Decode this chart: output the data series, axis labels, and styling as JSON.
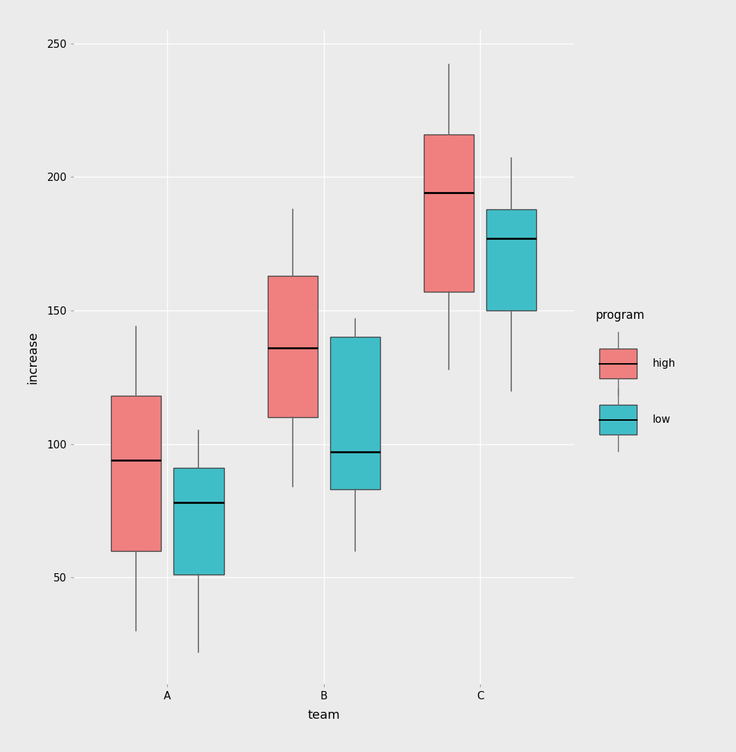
{
  "title": "",
  "xlabel": "team",
  "ylabel": "increase",
  "panel_bg_color": "#EBEBEB",
  "outer_bg_color": "#EBEBEB",
  "grid_color": "#FFFFFF",
  "groups": [
    "A",
    "B",
    "C"
  ],
  "programs": [
    "high",
    "low"
  ],
  "colors": {
    "high": "#F08080",
    "low": "#40BEC8"
  },
  "boxes": {
    "A": {
      "high": {
        "whislo": 30,
        "q1": 60,
        "med": 94,
        "q3": 118,
        "whishi": 144
      },
      "low": {
        "whislo": 22,
        "q1": 51,
        "med": 78,
        "q3": 91,
        "whishi": 105
      }
    },
    "B": {
      "high": {
        "whislo": 84,
        "q1": 110,
        "med": 136,
        "q3": 163,
        "whishi": 188
      },
      "low": {
        "whislo": 60,
        "q1": 83,
        "med": 97,
        "q3": 140,
        "whishi": 147
      }
    },
    "C": {
      "high": {
        "whislo": 128,
        "q1": 157,
        "med": 194,
        "q3": 216,
        "whishi": 242
      },
      "low": {
        "whislo": 120,
        "q1": 150,
        "med": 177,
        "q3": 188,
        "whishi": 207
      }
    }
  },
  "ylim": [
    10,
    255
  ],
  "yticks": [
    50,
    100,
    150,
    200,
    250
  ],
  "box_width": 0.32,
  "offsets": [
    -0.2,
    0.2
  ],
  "legend_title": "program",
  "legend_labels": [
    "high",
    "low"
  ],
  "axis_label_fontsize": 13,
  "tick_fontsize": 11,
  "legend_fontsize": 11,
  "legend_title_fontsize": 12
}
